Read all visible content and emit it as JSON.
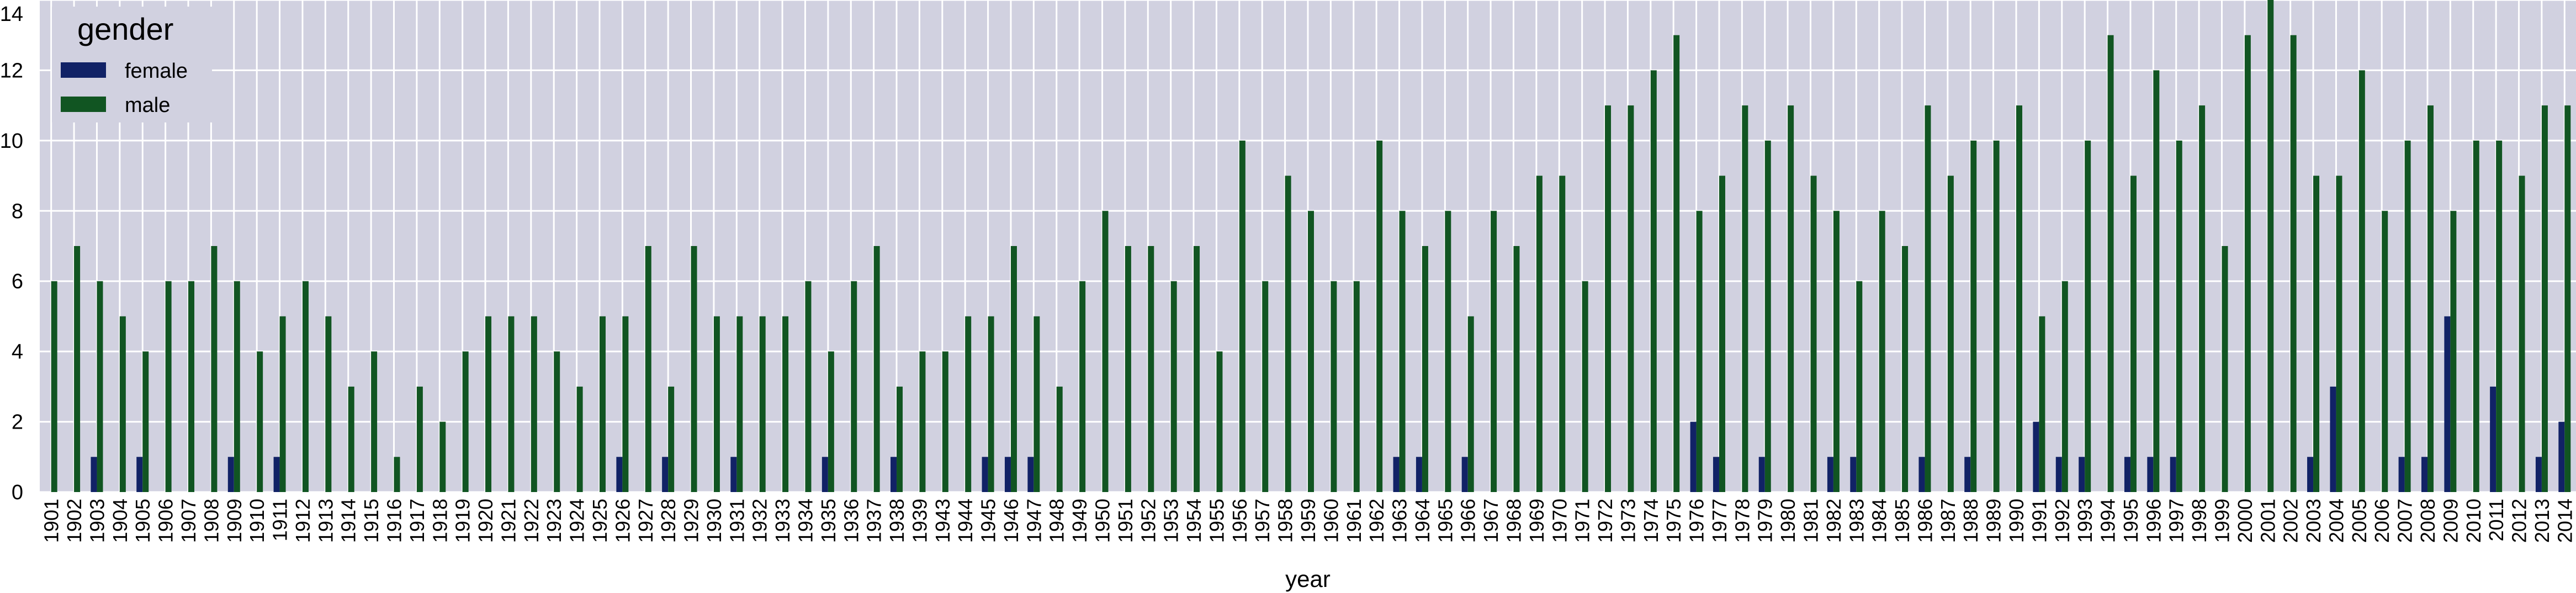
{
  "chart_data": {
    "type": "bar",
    "title": "",
    "xlabel": "year",
    "ylabel": "",
    "ylim": [
      0,
      14
    ],
    "yticks": [
      0,
      2,
      4,
      6,
      8,
      10,
      12,
      14
    ],
    "grid": true,
    "legend": {
      "title": "gender",
      "placement": "top-left"
    },
    "colors": {
      "background": "#d1d1e0",
      "grid": "#ffffff",
      "female": "#112266",
      "male": "#115522"
    },
    "categories": [
      "1901",
      "1902",
      "1903",
      "1904",
      "1905",
      "1906",
      "1907",
      "1908",
      "1909",
      "1910",
      "1911",
      "1912",
      "1913",
      "1914",
      "1915",
      "1916",
      "1917",
      "1918",
      "1919",
      "1920",
      "1921",
      "1922",
      "1923",
      "1924",
      "1925",
      "1926",
      "1927",
      "1928",
      "1929",
      "1930",
      "1931",
      "1932",
      "1933",
      "1934",
      "1935",
      "1936",
      "1937",
      "1938",
      "1939",
      "1943",
      "1944",
      "1945",
      "1946",
      "1947",
      "1948",
      "1949",
      "1950",
      "1951",
      "1952",
      "1953",
      "1954",
      "1955",
      "1956",
      "1957",
      "1958",
      "1959",
      "1960",
      "1961",
      "1962",
      "1963",
      "1964",
      "1965",
      "1966",
      "1967",
      "1968",
      "1969",
      "1970",
      "1971",
      "1972",
      "1973",
      "1974",
      "1975",
      "1976",
      "1977",
      "1978",
      "1979",
      "1980",
      "1981",
      "1982",
      "1983",
      "1984",
      "1985",
      "1986",
      "1987",
      "1988",
      "1989",
      "1990",
      "1991",
      "1992",
      "1993",
      "1994",
      "1995",
      "1996",
      "1997",
      "1998",
      "1999",
      "2000",
      "2001",
      "2002",
      "2003",
      "2004",
      "2005",
      "2006",
      "2007",
      "2008",
      "2009",
      "2010",
      "2011",
      "2012",
      "2013",
      "2014"
    ],
    "series": [
      {
        "name": "female",
        "values": [
          0,
          0,
          1,
          0,
          1,
          0,
          0,
          0,
          1,
          0,
          1,
          0,
          0,
          0,
          0,
          0,
          0,
          0,
          0,
          0,
          0,
          0,
          0,
          0,
          0,
          1,
          0,
          1,
          0,
          0,
          1,
          0,
          0,
          0,
          1,
          0,
          0,
          1,
          0,
          0,
          0,
          1,
          1,
          1,
          0,
          0,
          0,
          0,
          0,
          0,
          0,
          0,
          0,
          0,
          0,
          0,
          0,
          0,
          0,
          1,
          1,
          0,
          1,
          0,
          0,
          0,
          0,
          0,
          0,
          0,
          0,
          0,
          2,
          1,
          0,
          1,
          0,
          0,
          1,
          1,
          0,
          0,
          1,
          0,
          1,
          0,
          0,
          2,
          1,
          1,
          0,
          1,
          1,
          1,
          0,
          0,
          0,
          0,
          0,
          1,
          3,
          0,
          0,
          1,
          1,
          5,
          0,
          3,
          0,
          1,
          2
        ]
      },
      {
        "name": "male",
        "values": [
          6,
          7,
          6,
          5,
          4,
          6,
          6,
          7,
          6,
          4,
          5,
          6,
          5,
          3,
          4,
          1,
          3,
          2,
          4,
          5,
          5,
          5,
          4,
          3,
          5,
          5,
          7,
          3,
          7,
          5,
          5,
          5,
          5,
          6,
          4,
          6,
          7,
          3,
          4,
          4,
          5,
          5,
          7,
          5,
          3,
          6,
          8,
          7,
          7,
          6,
          7,
          4,
          10,
          6,
          9,
          8,
          6,
          6,
          10,
          8,
          7,
          8,
          5,
          8,
          7,
          9,
          9,
          6,
          11,
          11,
          12,
          13,
          8,
          9,
          11,
          10,
          11,
          9,
          8,
          6,
          8,
          7,
          11,
          9,
          10,
          10,
          11,
          5,
          6,
          10,
          13,
          9,
          12,
          10,
          11,
          7,
          13,
          14,
          13,
          9,
          9,
          12,
          8,
          10,
          11,
          8,
          10,
          10,
          9,
          11,
          11
        ]
      }
    ]
  }
}
